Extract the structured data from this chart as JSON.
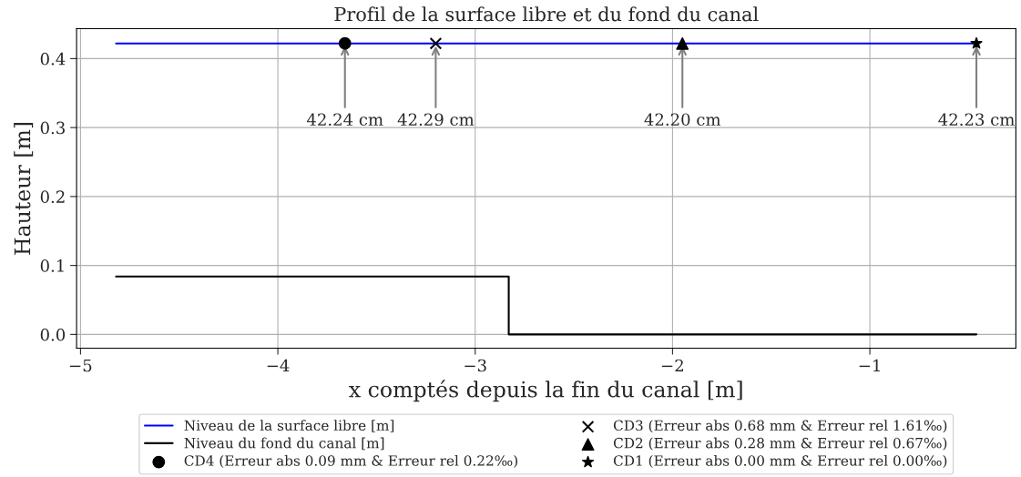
{
  "chart_data": {
    "type": "line",
    "title": "Profil de la surface libre et du fond du canal",
    "xlabel": "x comptés depuis la fin du canal [m]",
    "ylabel": "Hauteur [m]",
    "xlim": [
      -5.02,
      -0.26
    ],
    "xticks": [
      {
        "value": -5,
        "label": "−5"
      },
      {
        "value": -4,
        "label": "−4"
      },
      {
        "value": -3,
        "label": "−3"
      },
      {
        "value": -2,
        "label": "−2"
      },
      {
        "value": -1,
        "label": "−1"
      }
    ],
    "ylim": [
      -0.02,
      0.4435
    ],
    "yticks": [
      {
        "value": 0,
        "label": "0.0"
      },
      {
        "value": 0.1,
        "label": "0.1"
      },
      {
        "value": 0.2,
        "label": "0.2"
      },
      {
        "value": 0.3,
        "label": "0.3"
      },
      {
        "value": 0.4,
        "label": "0.4"
      }
    ],
    "grid": true,
    "legend": "bottom",
    "series": [
      {
        "name": "Niveau de la surface libre [m]",
        "color": "#0000ff",
        "x": [
          -4.82,
          -0.46
        ],
        "values": [
          0.422,
          0.422
        ]
      },
      {
        "name": "Niveau du fond du canal [m]",
        "type": "step",
        "color": "#000000",
        "x": [
          -4.82,
          -2.83,
          -0.46
        ],
        "values": [
          0.084,
          0,
          0
        ]
      },
      {
        "name": "CD4 (Erreur abs 0.09 mm & Erreur rel 0.22‰)",
        "type": "scatter",
        "marker": "circle",
        "color": "#000000",
        "x": [
          -3.66
        ],
        "values": [
          0.422
        ]
      },
      {
        "name": "CD3 (Erreur abs 0.68 mm & Erreur rel 1.61‰)",
        "type": "scatter",
        "marker": "cross",
        "color": "#000000",
        "x": [
          -3.2
        ],
        "values": [
          0.422
        ]
      },
      {
        "name": "CD2 (Erreur abs 0.28 mm & Erreur rel 0.67‰)",
        "type": "scatter",
        "marker": "triangle",
        "color": "#000000",
        "x": [
          -1.95
        ],
        "values": [
          0.422
        ]
      },
      {
        "name": "CD1 (Erreur abs 0.00 mm & Erreur rel 0.00‰)",
        "type": "scatter",
        "marker": "star",
        "color": "#000000",
        "x": [
          -0.46
        ],
        "values": [
          0.422
        ]
      }
    ],
    "annotations": [
      {
        "text": "42.24 cm",
        "x": -3.66,
        "y": 0.422
      },
      {
        "text": "42.29 cm",
        "x": -3.2,
        "y": 0.422
      },
      {
        "text": "42.20 cm",
        "x": -1.95,
        "y": 0.422
      },
      {
        "text": "42.23 cm",
        "x": -0.46,
        "y": 0.422
      }
    ]
  }
}
